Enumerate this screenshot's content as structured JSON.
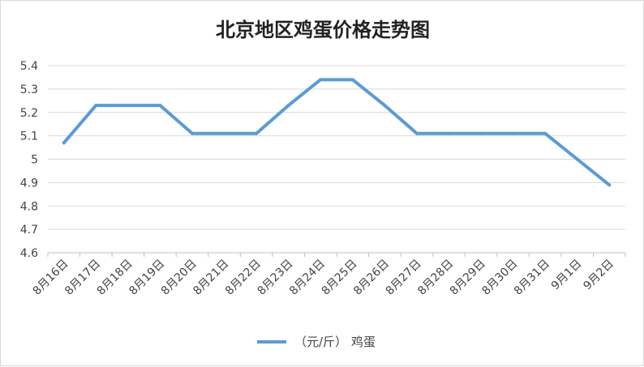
{
  "chart_data": {
    "type": "line",
    "title": "北京地区鸡蛋价格走势图",
    "categories": [
      "8月16日",
      "8月17日",
      "8月18日",
      "8月19日",
      "8月20日",
      "8月21日",
      "8月22日",
      "8月23日",
      "8月24日",
      "8月25日",
      "8月26日",
      "8月27日",
      "8月28日",
      "8月29日",
      "8月30日",
      "8月31日",
      "9月1日",
      "9月2日"
    ],
    "series": [
      {
        "name": "（元/斤） 鸡蛋",
        "color": "#5b9bd5",
        "values": [
          5.07,
          5.23,
          5.23,
          5.23,
          5.11,
          5.11,
          5.11,
          5.23,
          5.34,
          5.34,
          5.23,
          5.11,
          5.11,
          5.11,
          5.11,
          5.11,
          5.0,
          4.89
        ]
      }
    ],
    "y_ticks": [
      "4.6",
      "4.7",
      "4.8",
      "4.9",
      "5",
      "5.1",
      "5.2",
      "5.3",
      "5.4"
    ],
    "ylim": [
      4.6,
      5.4
    ],
    "grid": true,
    "legend_position": "bottom"
  }
}
